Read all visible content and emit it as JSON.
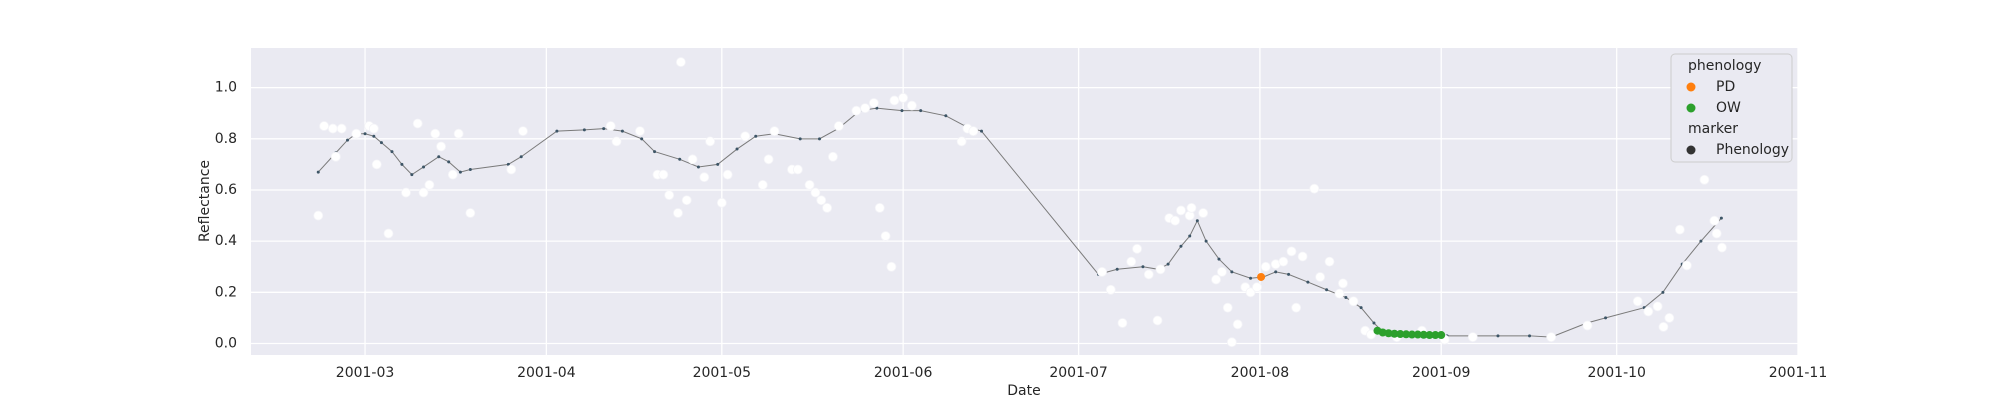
{
  "chart_data": {
    "type": "scatter",
    "x_label": "Date",
    "y_label": "Reflectance",
    "xlim": [
      40.5,
      305
    ],
    "xticks": [
      {
        "value": 60,
        "label": "2001-03"
      },
      {
        "value": 91,
        "label": "2001-04"
      },
      {
        "value": 121,
        "label": "2001-05"
      },
      {
        "value": 152,
        "label": "2001-06"
      },
      {
        "value": 182,
        "label": "2001-07"
      },
      {
        "value": 213,
        "label": "2001-08"
      },
      {
        "value": 244,
        "label": "2001-09"
      },
      {
        "value": 274,
        "label": "2001-10"
      },
      {
        "value": 305,
        "label": "2001-11"
      }
    ],
    "ylim": [
      -0.045,
      1.155
    ],
    "yticks": [
      {
        "value": 0,
        "label": "0.0"
      },
      0.2,
      0.4,
      0.6,
      0.8,
      {
        "value": 1,
        "label": "1.0"
      }
    ],
    "grid": true,
    "legend_titles": [
      "phenology",
      "marker"
    ],
    "series": [
      {
        "kind": "scatter",
        "color": "#ffffff",
        "x": [
          52,
          53,
          54.5,
          55,
          56,
          58.5,
          60.7,
          61.5,
          62,
          64,
          67,
          69,
          70,
          71,
          72,
          73,
          75,
          76,
          78,
          85,
          87,
          102,
          103,
          107,
          110,
          111,
          112,
          113.5,
          114,
          115,
          116,
          118,
          119,
          121,
          122,
          125,
          128,
          129,
          130,
          133,
          134,
          136,
          137,
          138,
          139,
          140,
          141,
          144,
          145.5,
          147,
          148,
          149,
          150,
          150.5,
          152,
          153.5,
          162,
          163,
          164,
          186,
          187.5,
          189.5,
          191,
          192,
          194,
          195.5,
          196,
          197.5,
          198.5,
          199.5,
          201,
          201.3,
          203.3,
          205.5,
          206.5,
          207.5,
          208.2,
          209.2,
          210.5,
          211.4,
          212.5,
          214,
          215.7,
          217,
          218.4,
          219.2,
          220.3,
          222.3,
          223.3,
          224.9,
          226.6,
          227.2,
          229,
          231,
          232,
          236.4,
          240.7,
          244.6,
          249.4,
          262.8,
          269,
          277.6,
          279.4,
          281,
          282,
          283,
          284.8,
          286,
          289,
          290.7,
          291.1,
          292
        ],
        "values": [
          0.5,
          0.85,
          0.84,
          0.73,
          0.84,
          0.82,
          0.85,
          0.84,
          0.7,
          0.43,
          0.59,
          0.86,
          0.59,
          0.62,
          0.82,
          0.77,
          0.66,
          0.82,
          0.51,
          0.68,
          0.83,
          0.85,
          0.79,
          0.83,
          0.66,
          0.66,
          0.58,
          0.51,
          1.1,
          0.56,
          0.72,
          0.65,
          0.79,
          0.55,
          0.66,
          0.81,
          0.62,
          0.72,
          0.83,
          0.68,
          0.68,
          0.62,
          0.59,
          0.56,
          0.53,
          0.73,
          0.85,
          0.91,
          0.92,
          0.94,
          0.53,
          0.42,
          0.3,
          0.95,
          0.96,
          0.93,
          0.79,
          0.84,
          0.83,
          0.28,
          0.21,
          0.08,
          0.32,
          0.37,
          0.27,
          0.09,
          0.29,
          0.49,
          0.48,
          0.52,
          0.5,
          0.53,
          0.51,
          0.25,
          0.28,
          0.14,
          0.005,
          0.075,
          0.22,
          0.2,
          0.22,
          0.3,
          0.31,
          0.32,
          0.36,
          0.14,
          0.34,
          0.605,
          0.26,
          0.32,
          0.195,
          0.235,
          0.165,
          0.05,
          0.035,
          0.025,
          0.05,
          0.015,
          0.025,
          0.025,
          0.07,
          0.165,
          0.125,
          0.145,
          0.065,
          0.1,
          0.445,
          0.305,
          0.64,
          0.48,
          0.43,
          0.375
        ]
      },
      {
        "kind": "line",
        "name": "Phenology",
        "color": "#333333",
        "x": [
          52,
          55,
          57,
          58.5,
          60,
          61.5,
          62.8,
          64.6,
          66.3,
          68,
          70,
          72.6,
          74.3,
          76.3,
          78,
          84.5,
          86.7,
          92.8,
          97.5,
          100.8,
          104,
          107.3,
          109.5,
          113.8,
          117,
          120.3,
          123.6,
          126.8,
          130,
          134.4,
          137.7,
          140.9,
          144.6,
          147.5,
          151.8,
          155,
          159.3,
          162.6,
          165.4,
          185.4,
          188.6,
          193,
          195.6,
          197.3,
          199.5,
          201,
          202.3,
          203.8,
          206,
          208.2,
          211.4,
          213.6,
          215.7,
          217.9,
          221.2,
          224.4,
          227.7,
          230.3,
          232.5,
          233.8,
          238.5,
          245,
          253.7,
          259.1,
          262.8,
          268.9,
          272.1,
          278.7,
          281.9,
          285.2,
          288.4,
          291.9
        ],
        "values": [
          0.67,
          0.745,
          0.795,
          0.82,
          0.82,
          0.81,
          0.785,
          0.75,
          0.7,
          0.66,
          0.69,
          0.73,
          0.71,
          0.67,
          0.68,
          0.7,
          0.73,
          0.83,
          0.835,
          0.84,
          0.83,
          0.8,
          0.75,
          0.72,
          0.69,
          0.7,
          0.76,
          0.81,
          0.82,
          0.8,
          0.8,
          0.84,
          0.91,
          0.92,
          0.91,
          0.91,
          0.89,
          0.85,
          0.83,
          0.27,
          0.29,
          0.3,
          0.29,
          0.31,
          0.38,
          0.42,
          0.48,
          0.4,
          0.33,
          0.28,
          0.255,
          0.26,
          0.28,
          0.27,
          0.24,
          0.21,
          0.18,
          0.14,
          0.08,
          0.05,
          0.035,
          0.03,
          0.03,
          0.03,
          0.025,
          0.08,
          0.1,
          0.14,
          0.2,
          0.31,
          0.4,
          0.49
        ]
      },
      {
        "kind": "scatter",
        "name": "PD",
        "color": "#ff7f0e",
        "x": [
          213.2
        ],
        "values": [
          0.26
        ]
      },
      {
        "kind": "scatter",
        "name": "OW",
        "color": "#2ca02c",
        "x": [
          233.1,
          234,
          235,
          236,
          237,
          238,
          239,
          240,
          241,
          242,
          243,
          244
        ],
        "values": [
          0.05,
          0.043,
          0.04,
          0.038,
          0.037,
          0.036,
          0.035,
          0.035,
          0.034,
          0.033,
          0.033,
          0.033
        ]
      }
    ]
  }
}
